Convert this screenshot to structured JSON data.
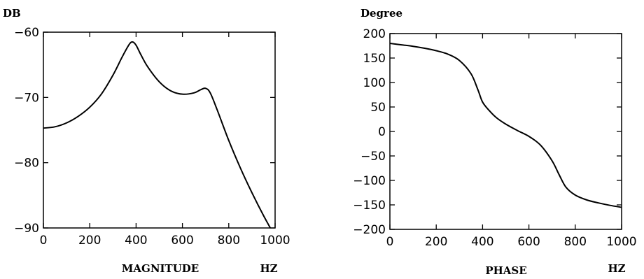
{
  "chart_data": [
    {
      "type": "line",
      "ylabel": "DB",
      "xlabel": "MAGNITUDE",
      "xunit": "HZ",
      "xlim": [
        0,
        1000
      ],
      "ylim": [
        -90,
        -60
      ],
      "x_ticks": [
        0,
        200,
        400,
        600,
        800,
        1000
      ],
      "y_ticks": [
        -90,
        -80,
        -70,
        -60
      ],
      "grid": false,
      "series": [
        {
          "x": [
            0,
            50,
            100,
            150,
            200,
            250,
            300,
            340,
            370,
            385,
            400,
            420,
            450,
            500,
            550,
            600,
            650,
            680,
            700,
            720,
            750,
            800,
            850,
            900,
            950,
            1000
          ],
          "y": [
            -74.7,
            -74.5,
            -73.9,
            -72.9,
            -71.5,
            -69.5,
            -66.6,
            -63.8,
            -61.9,
            -61.5,
            -62.0,
            -63.4,
            -65.3,
            -67.6,
            -69.0,
            -69.5,
            -69.3,
            -68.8,
            -68.6,
            -69.3,
            -71.9,
            -76.6,
            -80.8,
            -84.6,
            -88.1,
            -91.3
          ]
        }
      ]
    },
    {
      "type": "line",
      "ylabel": "Degree",
      "xlabel": "PHASE",
      "xunit": "HZ",
      "xlim": [
        0,
        1000
      ],
      "ylim": [
        -200,
        200
      ],
      "x_ticks": [
        0,
        200,
        400,
        600,
        800,
        1000
      ],
      "y_ticks": [
        -200,
        -150,
        -100,
        -50,
        0,
        50,
        100,
        150,
        200
      ],
      "grid": false,
      "series": [
        {
          "x": [
            0,
            50,
            100,
            150,
            200,
            250,
            300,
            350,
            380,
            400,
            430,
            460,
            500,
            550,
            600,
            650,
            700,
            730,
            760,
            800,
            850,
            900,
            950,
            1000
          ],
          "y": [
            180,
            177,
            174,
            170,
            165,
            158,
            145,
            118,
            85,
            60,
            42,
            28,
            15,
            2,
            -10,
            -28,
            -60,
            -88,
            -114,
            -130,
            -140,
            -146,
            -151,
            -155
          ]
        }
      ]
    }
  ]
}
